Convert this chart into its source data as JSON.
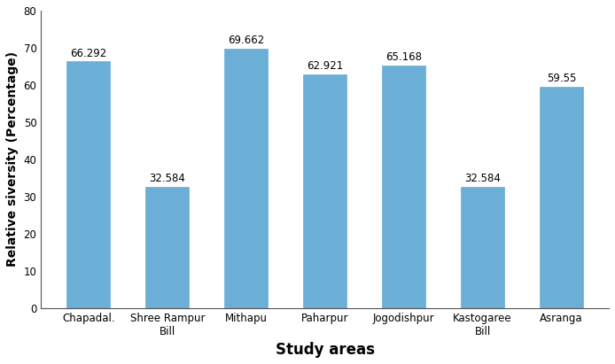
{
  "categories": [
    "Chapadal.",
    "Shree Rampur\nBill",
    "Mithapu",
    "Paharpur",
    "Jogodishpur",
    "Kastogaree\nBill",
    "Asranga"
  ],
  "values": [
    66.292,
    32.584,
    69.662,
    62.921,
    65.168,
    32.584,
    59.55
  ],
  "bar_color": "#6BAED6",
  "bar_edgecolor": "#6BAED6",
  "ylabel": "Relative siversity (Percentage)",
  "xlabel": "Study areas",
  "ylim": [
    0,
    80
  ],
  "yticks": [
    0,
    10,
    20,
    30,
    40,
    50,
    60,
    70,
    80
  ],
  "value_label_fontsize": 8.5,
  "xlabel_fontsize": 12,
  "ylabel_fontsize": 10,
  "tick_label_fontsize": 8.5,
  "background_color": "#ffffff",
  "bar_width": 0.55,
  "figwidth": 6.94,
  "figheight": 4.11,
  "dpi": 100
}
